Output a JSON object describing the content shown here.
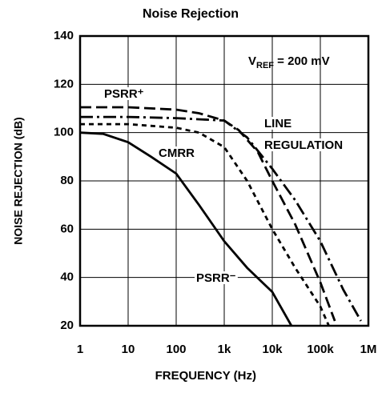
{
  "chart_data": {
    "type": "line",
    "title": "Noise Rejection",
    "xlabel": "FREQUENCY (Hz)",
    "ylabel": "NOISE REJECTION (dB)",
    "annotation": [
      "V",
      "REF",
      " = 200 mV"
    ],
    "xscale": "log",
    "xlim": [
      1,
      1000000
    ],
    "ylim": [
      20,
      140
    ],
    "xticks": [
      1,
      10,
      100,
      {
        "value": 1000,
        "label": "1k"
      },
      {
        "value": 10000,
        "label": "10k"
      },
      {
        "value": 100000,
        "label": "100k"
      },
      {
        "value": 1000000,
        "label": "1M"
      }
    ],
    "yticks": [
      20,
      40,
      60,
      80,
      100,
      120,
      140
    ],
    "grid": true,
    "series": [
      {
        "name": "PSRR⁺",
        "color": "#000000",
        "dash": "long-dash",
        "x": [
          1,
          10,
          100,
          300,
          1000,
          2000,
          5000,
          10000,
          30000,
          100000,
          200000
        ],
        "values": [
          110.5,
          110.5,
          109.5,
          108,
          105,
          101,
          92,
          80,
          62,
          38,
          22
        ]
      },
      {
        "name": "LINE REGULATION",
        "color": "#000000",
        "dash": "dash-dot",
        "x": [
          1,
          10,
          100,
          1000,
          3000,
          10000,
          30000,
          100000,
          300000,
          700000
        ],
        "values": [
          106.5,
          106.5,
          106,
          105,
          98,
          85,
          72,
          55,
          35,
          22
        ]
      },
      {
        "name": "CMRR",
        "color": "#000000",
        "dash": "short-dash",
        "x": [
          1,
          10,
          100,
          300,
          1000,
          3000,
          10000,
          30000,
          100000,
          150000
        ],
        "values": [
          103.5,
          103.5,
          102,
          100,
          94,
          80,
          60,
          44,
          28,
          20
        ]
      },
      {
        "name": "PSRR⁻",
        "color": "#000000",
        "dash": "solid",
        "x": [
          1,
          3,
          10,
          30,
          100,
          300,
          1000,
          3000,
          10000,
          25000
        ],
        "values": [
          100,
          99.5,
          96,
          90,
          83,
          70,
          55,
          44,
          34,
          20
        ]
      }
    ]
  }
}
